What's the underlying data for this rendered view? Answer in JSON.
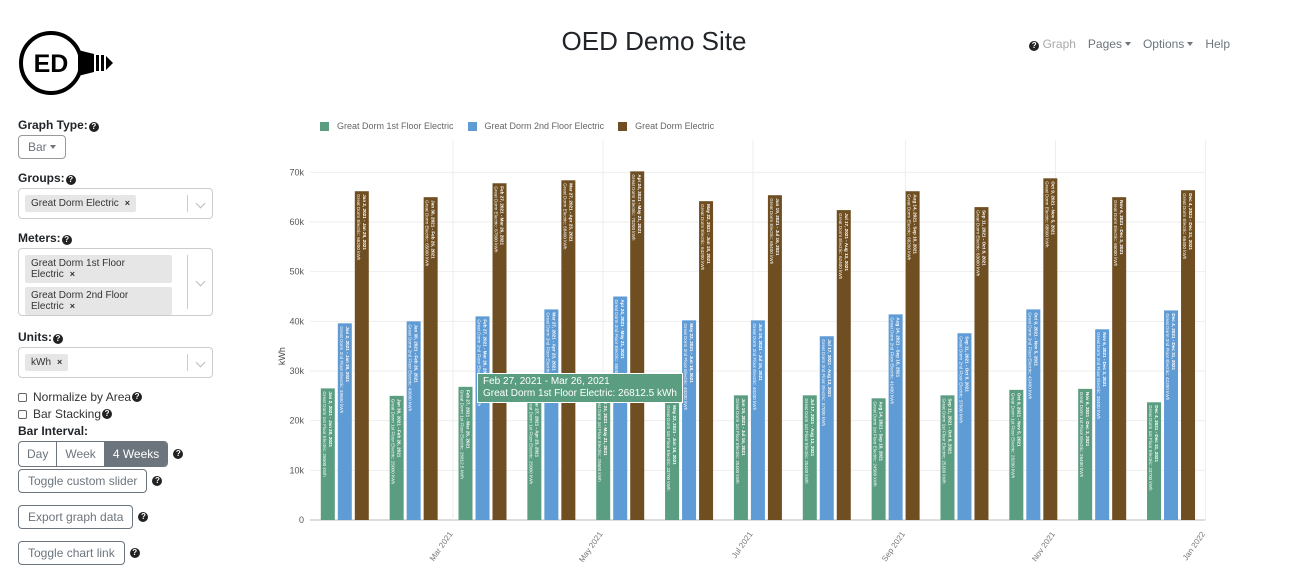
{
  "header": {
    "title": "OED Demo Site",
    "logo_text": "ED",
    "nav": {
      "graph": "Graph",
      "pages": "Pages",
      "options": "Options",
      "help": "Help"
    }
  },
  "sidebar": {
    "graph_type_label": "Graph Type:",
    "graph_type_value": "Bar",
    "groups_label": "Groups:",
    "groups": [
      "Great Dorm Electric"
    ],
    "meters_label": "Meters:",
    "meters": [
      "Great Dorm 1st Floor Electric",
      "Great Dorm 2nd Floor Electric"
    ],
    "units_label": "Units:",
    "units": [
      "kWh"
    ],
    "normalize_label": "Normalize by Area",
    "normalize_checked": false,
    "stacking_label": "Bar Stacking",
    "stacking_checked": false,
    "interval_label": "Bar Interval:",
    "intervals": [
      "Day",
      "Week",
      "4 Weeks"
    ],
    "interval_selected": "4 Weeks",
    "toggle_slider": "Toggle custom slider",
    "export": "Export graph data",
    "toggle_link": "Toggle chart link"
  },
  "tooltip": {
    "line1": "Feb 27, 2021 - Mar 26, 2021",
    "line2": "Great Dorm 1st Floor Electric: 26812.5 kWh"
  },
  "chart_data": {
    "type": "bar",
    "ylabel": "kWh",
    "xlabel": "",
    "ylim": [
      0,
      74500
    ],
    "yticks": [
      "0",
      "10k",
      "20k",
      "30k",
      "40k",
      "50k",
      "60k",
      "70k"
    ],
    "xticks": [
      "Mar 2021",
      "May 2021",
      "Jul 2021",
      "Sep 2021",
      "Nov 2021",
      "Jan 2022"
    ],
    "grid": true,
    "legend": "top-left",
    "categories": [
      "Jan 2, 2021 - Jan 29, 2021",
      "Jan 30, 2021 - Feb 26, 2021",
      "Feb 27, 2021 - Mar 26, 2021",
      "Mar 27, 2021 - Apr 23, 2021",
      "Apr 24, 2021 - May 21, 2021",
      "May 22, 2021 - Jun 18, 2021",
      "Jun 19, 2021 - Jul 16, 2021",
      "Jul 17, 2021 - Aug 13, 2021",
      "Aug 14, 2021 - Sep 10, 2021",
      "Sep 11, 2021 - Oct 8, 2021",
      "Oct 9, 2021 - Nov 5, 2021",
      "Nov 6, 2021 - Dec 3, 2021",
      "Dec 4, 2021 - Dec 31, 2021"
    ],
    "series": [
      {
        "name": "Great Dorm 1st Floor Electric",
        "color": "#5a9d81",
        "values": [
          26500,
          25000,
          26812.5,
          25000,
          25500,
          23700,
          25100,
          25100,
          24500,
          25100,
          26200,
          26400,
          23700
        ]
      },
      {
        "name": "Great Dorm 2nd Floor Electric",
        "color": "#5f9bd5",
        "values": [
          39600,
          40000,
          41000,
          42400,
          45000,
          40200,
          40200,
          37000,
          41400,
          37600,
          42400,
          38400,
          42200
        ]
      },
      {
        "name": "Great Dorm Electric",
        "color": "#6f4f21",
        "values": [
          66200,
          65000,
          67800,
          68400,
          70200,
          64200,
          65400,
          62400,
          66200,
          63000,
          68800,
          65000,
          66400
        ]
      }
    ]
  }
}
